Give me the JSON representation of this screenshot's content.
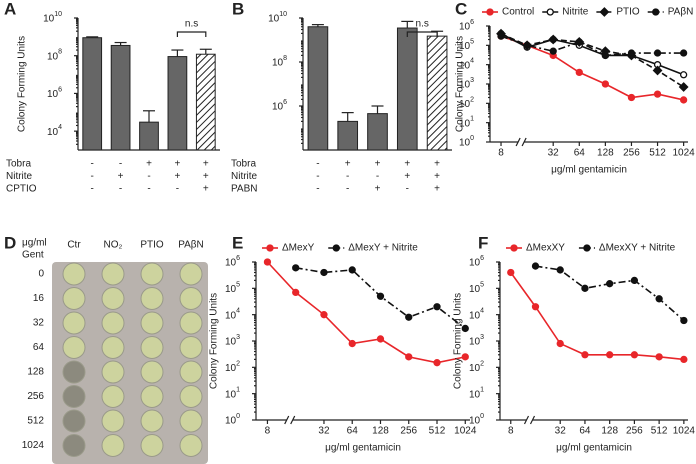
{
  "chart_data": [
    {
      "type": "bar",
      "panel_label": "A",
      "ylabel": "Colony Forming Units",
      "log_y": true,
      "ylim": [
        1000,
        10000000000
      ],
      "yticks": [
        {
          "value": 10000,
          "label": "10",
          "exp": "4"
        },
        {
          "value": 1000000,
          "label": "10",
          "exp": "6"
        },
        {
          "value": 100000000,
          "label": "10",
          "exp": "8"
        },
        {
          "value": 10000000000,
          "label": "10",
          "exp": "10"
        }
      ],
      "values": [
        900000000,
        350000000,
        30000,
        90000000,
        120000000
      ],
      "errors": [
        100000000,
        150000000,
        90000,
        110000000,
        100000000
      ],
      "hatched": [
        false,
        false,
        false,
        false,
        true
      ],
      "color": "#666666",
      "annotation": "n.s",
      "treatments": [
        {
          "name": "Tobra",
          "signs": [
            "-",
            "-",
            "+",
            "+",
            "+"
          ]
        },
        {
          "name": "Nitrite",
          "signs": [
            "-",
            "+",
            "-",
            "+",
            "+"
          ]
        },
        {
          "name": "CPTIO",
          "signs": [
            "-",
            "-",
            "-",
            "-",
            "+"
          ]
        }
      ]
    },
    {
      "type": "bar",
      "panel_label": "B",
      "log_y": true,
      "ylim": [
        10000,
        10000000000
      ],
      "yticks": [
        {
          "value": 1000000,
          "label": "10",
          "exp": "6"
        },
        {
          "value": 100000000,
          "label": "10",
          "exp": "8"
        },
        {
          "value": 10000000000,
          "label": "10",
          "exp": "10"
        }
      ],
      "values": [
        4000000000,
        200000,
        450000,
        3500000000,
        1500000000
      ],
      "errors": [
        1000000000,
        300000,
        550000,
        3500000000,
        1000000000
      ],
      "hatched": [
        false,
        false,
        false,
        false,
        true
      ],
      "color": "#666666",
      "annotation": "n.s",
      "treatments": [
        {
          "name": "Tobra",
          "signs": [
            "-",
            "+",
            "+",
            "+",
            "+"
          ]
        },
        {
          "name": "Nitrite",
          "signs": [
            "-",
            "-",
            "-",
            "+",
            "+"
          ]
        },
        {
          "name": "PABN",
          "signs": [
            "-",
            "-",
            "+",
            "-",
            "+"
          ]
        }
      ]
    },
    {
      "type": "line",
      "panel_label": "C",
      "ylabel": "Colony Forming Units",
      "xlabel": "μg/ml gentamicin",
      "log_y": true,
      "log_x": 2,
      "xlim": [
        7,
        1150
      ],
      "ylim": [
        1,
        1000000
      ],
      "xticks": [
        8,
        32,
        64,
        128,
        256,
        512,
        1024
      ],
      "yticks": [
        {
          "value": 1,
          "label": "10",
          "exp": "0"
        },
        {
          "value": 10,
          "label": "10",
          "exp": "1"
        },
        {
          "value": 100,
          "label": "10",
          "exp": "2"
        },
        {
          "value": 1000,
          "label": "10",
          "exp": "3"
        },
        {
          "value": 10000,
          "label": "10",
          "exp": "4"
        },
        {
          "value": 100000,
          "label": "10",
          "exp": "5"
        },
        {
          "value": 1000000,
          "label": "10",
          "exp": "6"
        }
      ],
      "x": [
        8,
        16,
        32,
        64,
        128,
        256,
        512,
        1024
      ],
      "series": [
        {
          "name": "Control",
          "color": "#e8262a",
          "dash": "solid",
          "marker": "circle",
          "values": [
            300000,
            100000,
            30000,
            4000,
            1000,
            200,
            300,
            150
          ]
        },
        {
          "name": "Nitrite",
          "color": "#111111",
          "dash": "solid",
          "marker": "open-circle",
          "values": [
            400000,
            80000,
            200000,
            100000,
            30000,
            30000,
            10000,
            3000
          ]
        },
        {
          "name": "PTIO",
          "color": "#111111",
          "dash": "dashed",
          "marker": "diamond",
          "values": [
            400000,
            100000,
            200000,
            150000,
            50000,
            30000,
            5000,
            700
          ]
        },
        {
          "name": "PAβN",
          "color": "#111111",
          "dash": "dashdot",
          "marker": "circle",
          "values": [
            300000,
            100000,
            50000,
            150000,
            30000,
            40000,
            40000,
            40000
          ]
        }
      ]
    },
    {
      "type": "line",
      "panel_label": "E",
      "ylabel": "Colony Forming Units",
      "xlabel": "μg/ml gentamicin",
      "log_y": true,
      "log_x": 2,
      "xlim": [
        7,
        1150
      ],
      "ylim": [
        1,
        1000000
      ],
      "xticks": [
        8,
        32,
        64,
        128,
        256,
        512,
        1024
      ],
      "yticks": [
        {
          "value": 1,
          "label": "10",
          "exp": "0"
        },
        {
          "value": 10,
          "label": "10",
          "exp": "1"
        },
        {
          "value": 100,
          "label": "10",
          "exp": "2"
        },
        {
          "value": 1000,
          "label": "10",
          "exp": "3"
        },
        {
          "value": 10000,
          "label": "10",
          "exp": "4"
        },
        {
          "value": 100000,
          "label": "10",
          "exp": "5"
        },
        {
          "value": 1000000,
          "label": "10",
          "exp": "6"
        }
      ],
      "x": [
        8,
        16,
        32,
        64,
        128,
        256,
        512,
        1024
      ],
      "series": [
        {
          "name": "ΔMexY",
          "color": "#e8262a",
          "dash": "solid",
          "marker": "circle",
          "values": [
            1000000,
            70000,
            10000,
            800,
            1200,
            250,
            150,
            250
          ]
        },
        {
          "name": "ΔMexY + Nitrite",
          "color": "#111111",
          "dash": "dashdot",
          "marker": "circle",
          "values": [
            null,
            600000,
            400000,
            500000,
            50000,
            8000,
            20000,
            3000
          ]
        }
      ]
    },
    {
      "type": "line",
      "panel_label": "F",
      "ylabel": "Colony Forming Units",
      "xlabel": "μg/ml gentamicin",
      "log_y": true,
      "log_x": 2,
      "xlim": [
        7,
        1150
      ],
      "ylim": [
        1,
        1000000
      ],
      "xticks": [
        8,
        32,
        64,
        128,
        256,
        512,
        1024
      ],
      "yticks": [
        {
          "value": 1,
          "label": "10",
          "exp": "0"
        },
        {
          "value": 10,
          "label": "10",
          "exp": "1"
        },
        {
          "value": 100,
          "label": "10",
          "exp": "2"
        },
        {
          "value": 1000,
          "label": "10",
          "exp": "3"
        },
        {
          "value": 10000,
          "label": "10",
          "exp": "4"
        },
        {
          "value": 100000,
          "label": "10",
          "exp": "5"
        },
        {
          "value": 1000000,
          "label": "10",
          "exp": "6"
        }
      ],
      "x": [
        8,
        16,
        32,
        64,
        128,
        256,
        512,
        1024
      ],
      "series": [
        {
          "name": "ΔMexXY",
          "color": "#e8262a",
          "dash": "solid",
          "marker": "circle",
          "values": [
            400000,
            20000,
            800,
            300,
            300,
            300,
            250,
            200
          ]
        },
        {
          "name": "ΔMexXY + Nitrite",
          "color": "#111111",
          "dash": "dashdot",
          "marker": "circle",
          "values": [
            null,
            700000,
            500000,
            100000,
            150000,
            200000,
            40000,
            6000
          ]
        }
      ]
    }
  ],
  "panel_d": {
    "panel_label": "D",
    "gent_label": [
      "μg/ml",
      "Gent"
    ],
    "columns": [
      "Ctr",
      "NO₂",
      "PTIO",
      "PAβN"
    ],
    "rows": [
      "0",
      "16",
      "32",
      "64",
      "128",
      "256",
      "512",
      "1024"
    ]
  }
}
